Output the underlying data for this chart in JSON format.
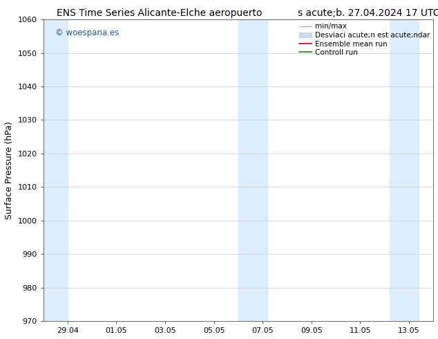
{
  "title": "ENS Time Series Alicante-Elche aeropuerto",
  "subtitle": "s acute;b. 27.04.2024 17 UTC",
  "ylabel": "Surface Pressure (hPa)",
  "ylim": [
    970,
    1060
  ],
  "yticks": [
    970,
    980,
    990,
    1000,
    1010,
    1020,
    1030,
    1040,
    1050,
    1060
  ],
  "xtick_labels": [
    "29.04",
    "01.05",
    "03.05",
    "05.05",
    "07.05",
    "09.05",
    "11.05",
    "13.05"
  ],
  "xmin": 0,
  "xmax": 16,
  "shade_bands": [
    {
      "xmin": 0.0,
      "xmax": 1.0
    },
    {
      "xmin": 8.0,
      "xmax": 9.2
    },
    {
      "xmin": 14.2,
      "xmax": 15.4
    }
  ],
  "shade_color": "#ddeeff",
  "watermark_text": "© woespana.es",
  "watermark_color": "#2255aa",
  "background_color": "#ffffff",
  "plot_bg_color": "#ffffff",
  "legend_label_minmax": "min/max",
  "legend_label_desvstd": "Desviaci acute;n est acute;ndar",
  "legend_label_ensemble": "Ensemble mean run",
  "legend_label_control": "Controll run",
  "legend_color_minmax": "#aaaaaa",
  "legend_color_desvstd": "#c8ddf0",
  "legend_color_ensemble": "#cc0000",
  "legend_color_control": "#228800",
  "font_size_title": 10,
  "font_size_axis": 9,
  "font_size_tick": 8,
  "font_size_legend": 7.5,
  "font_size_watermark": 8.5
}
